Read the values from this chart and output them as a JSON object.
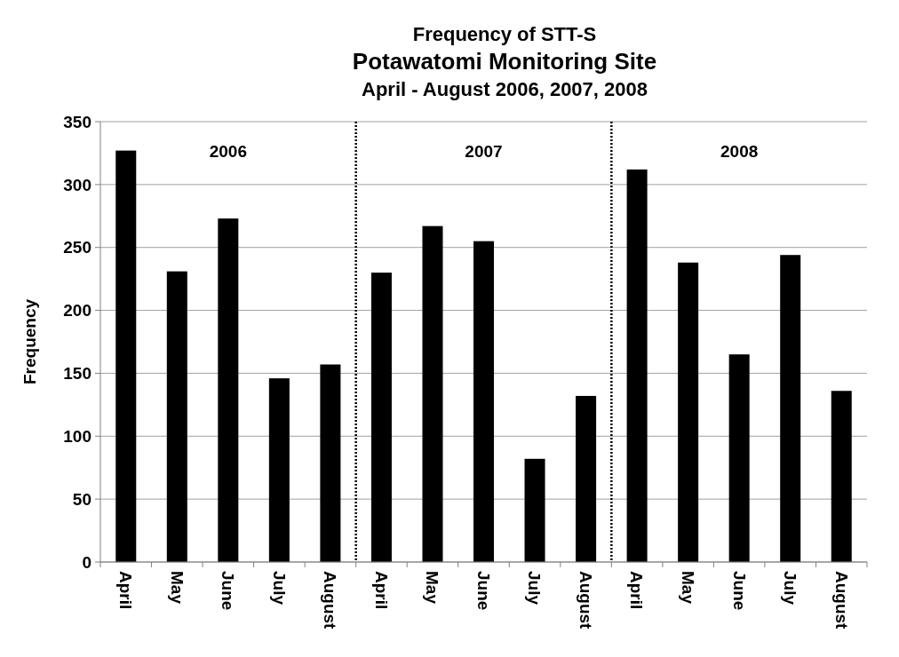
{
  "chart_data": {
    "type": "bar",
    "title": "Frequency of STT-S",
    "subtitle": "Potawatomi Monitoring Site\nApril - August 2006, 2007, 2008",
    "ylabel": "Frequency",
    "categories": [
      "April",
      "May",
      "June",
      "July",
      "August",
      "April",
      "May",
      "June",
      "July",
      "August",
      "April",
      "May",
      "June",
      "July",
      "August"
    ],
    "values": [
      327,
      231,
      273,
      146,
      157,
      230,
      267,
      255,
      82,
      132,
      312,
      238,
      165,
      244,
      136
    ],
    "color": "#000000",
    "ylim": [
      0,
      350
    ],
    "yticks": [
      0,
      50,
      100,
      150,
      200,
      250,
      300,
      350
    ],
    "grid": "y",
    "annotations": [
      "2006",
      "2007",
      "2008"
    ]
  }
}
